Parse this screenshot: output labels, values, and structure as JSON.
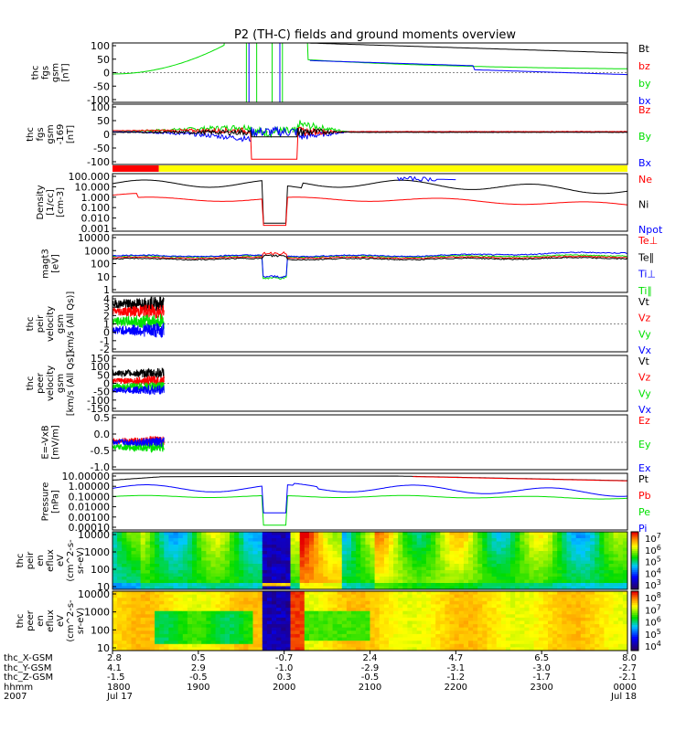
{
  "title": "P2 (TH-C) fields and ground moments overview",
  "colors": {
    "black": "#000000",
    "red": "#ff0000",
    "green": "#00e000",
    "blue": "#0000ff"
  },
  "chart_data": [
    {
      "type": "line",
      "ylabel": [
        "thc",
        "fgs",
        "gsm",
        "[nT]"
      ],
      "yticks": [
        "100",
        "50",
        "0",
        "-50",
        "-100"
      ],
      "ylim": [
        -100,
        100
      ],
      "legend": [
        {
          "label": "Bt",
          "color": "#000000"
        },
        {
          "label": "bz",
          "color": "#ff0000"
        },
        {
          "label": "by",
          "color": "#00e000"
        },
        {
          "label": "bx",
          "color": "#0000ff"
        }
      ]
    },
    {
      "type": "line",
      "ylabel": [
        "thc",
        "fgs",
        "gsm",
        "-169",
        "[nT]"
      ],
      "yticks": [
        "100",
        "50",
        "0",
        "-50",
        "-100"
      ],
      "ylim": [
        -120,
        100
      ],
      "legend": [
        {
          "label": "Bz",
          "color": "#ff0000"
        },
        {
          "label": "By",
          "color": "#00e000"
        },
        {
          "label": "Bx",
          "color": "#0000ff"
        }
      ]
    },
    {
      "type": "line",
      "ylabel": [
        "Density",
        "[1/cc]",
        "[cm-3]"
      ],
      "yticks": [
        "100.000",
        "10.000",
        "1.000",
        "0.100",
        "0.010",
        "0.001"
      ],
      "yscale": "log",
      "legend": [
        {
          "label": "Ne",
          "color": "#ff0000"
        },
        {
          "label": "Ni",
          "color": "#000000"
        },
        {
          "label": "Npot",
          "color": "#0000ff"
        }
      ]
    },
    {
      "type": "line",
      "ylabel": [
        "magt3",
        "[eV]"
      ],
      "yticks": [
        "10000",
        "1000",
        "100",
        "10",
        "1"
      ],
      "yscale": "log",
      "legend": [
        {
          "label": "Te⊥",
          "color": "#ff0000"
        },
        {
          "label": "Te∥",
          "color": "#000000"
        },
        {
          "label": "Ti⊥",
          "color": "#0000ff"
        },
        {
          "label": "Ti∥",
          "color": "#00e000"
        }
      ]
    },
    {
      "type": "line",
      "ylabel": [
        "thc",
        "peir",
        "velocity",
        "gsm",
        "[km/s (All Qs)]"
      ],
      "yticks": [
        "4",
        "3",
        "2",
        "1",
        "0",
        "-1",
        "-2"
      ],
      "ylim": [
        -2,
        4
      ],
      "legend": [
        {
          "label": "Vt",
          "color": "#000000"
        },
        {
          "label": "Vz",
          "color": "#ff0000"
        },
        {
          "label": "Vy",
          "color": "#00e000"
        },
        {
          "label": "Vx",
          "color": "#0000ff"
        }
      ]
    },
    {
      "type": "line",
      "ylabel": [
        "thc",
        "peer",
        "velocity",
        "gsm",
        "[km/s (All Qs)]"
      ],
      "yticks": [
        "150",
        "100",
        "50",
        "0",
        "-50",
        "-100",
        "-150"
      ],
      "ylim": [
        -150,
        150
      ],
      "legend": [
        {
          "label": "Vt",
          "color": "#000000"
        },
        {
          "label": "Vz",
          "color": "#ff0000"
        },
        {
          "label": "Vy",
          "color": "#00e000"
        },
        {
          "label": "Vx",
          "color": "#0000ff"
        }
      ]
    },
    {
      "type": "line",
      "ylabel": [
        "E=-VxB",
        "[mV/m]"
      ],
      "yticks": [
        "0.5",
        "0.0",
        "-0.5",
        "-1.0"
      ],
      "ylim": [
        -1.0,
        1.0
      ],
      "legend": [
        {
          "label": "Ez",
          "color": "#ff0000"
        },
        {
          "label": "Ey",
          "color": "#00e000"
        },
        {
          "label": "Ex",
          "color": "#0000ff"
        }
      ]
    },
    {
      "type": "line",
      "ylabel": [
        "Pressure",
        "[nPa]"
      ],
      "yticks": [
        "10.00000",
        "1.00000",
        "0.10000",
        "0.01000",
        "0.00100",
        "0.00010"
      ],
      "yscale": "log",
      "legend": [
        {
          "label": "Pt",
          "color": "#000000"
        },
        {
          "label": "Pb",
          "color": "#ff0000"
        },
        {
          "label": "Pe",
          "color": "#00e000"
        },
        {
          "label": "Pi",
          "color": "#0000ff"
        }
      ]
    },
    {
      "type": "heatmap",
      "ylabel": [
        "thc",
        "peir",
        "en",
        "eflux",
        "eV",
        "(cm^2-s-",
        "sr-eV)"
      ],
      "yticks": [
        "10000",
        "1000",
        "100",
        "10"
      ],
      "yscale": "log",
      "colorbar_ticks": [
        "10^7",
        "10^6",
        "10^5",
        "10^4",
        "10^3"
      ]
    },
    {
      "type": "heatmap",
      "ylabel": [
        "thc",
        "peer",
        "en",
        "eflux",
        "eV",
        "(cm^2-s-",
        "sr-eV)"
      ],
      "yticks": [
        "10000",
        "1000",
        "100",
        "10"
      ],
      "yscale": "log",
      "colorbar_ticks": [
        "10^8",
        "10^7",
        "10^6",
        "10^5",
        "10^4"
      ]
    }
  ],
  "xaxis": {
    "row_labels": [
      "thc_X-GSM",
      "thc_Y-GSM",
      "thc_Z-GSM",
      "hhmm",
      "2007"
    ],
    "ticks": [
      {
        "x": "2.8",
        "y": "4.1",
        "z": "-1.5",
        "hhmm": "1800",
        "date": "Jul 17"
      },
      {
        "x": "0.5",
        "y": "2.9",
        "z": "-0.5",
        "hhmm": "1900",
        "date": ""
      },
      {
        "x": "-0.7",
        "y": "-1.0",
        "z": "0.3",
        "hhmm": "2000",
        "date": ""
      },
      {
        "x": "2.4",
        "y": "-2.9",
        "z": "-0.5",
        "hhmm": "2100",
        "date": ""
      },
      {
        "x": "4.7",
        "y": "-3.1",
        "z": "-1.2",
        "hhmm": "2200",
        "date": ""
      },
      {
        "x": "6.5",
        "y": "-3.0",
        "z": "-1.7",
        "hhmm": "2300",
        "date": ""
      },
      {
        "x": "8.0",
        "y": "-2.7",
        "z": "-2.1",
        "hhmm": "0000",
        "date": "Jul 18"
      }
    ]
  }
}
